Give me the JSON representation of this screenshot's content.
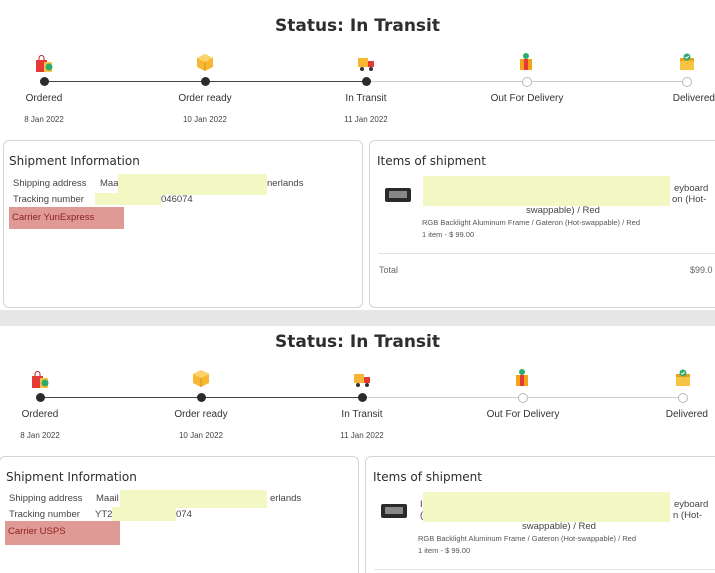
{
  "status_title": "Status: In Transit",
  "steps": [
    {
      "label": "Ordered",
      "date": "8 Jan 2022",
      "icon": "shopping-bag-icon",
      "done": true
    },
    {
      "label": "Order ready",
      "date": "10 Jan 2022",
      "icon": "package-icon",
      "done": true
    },
    {
      "label": "In Transit",
      "date": "11 Jan 2022",
      "icon": "truck-icon",
      "done": true
    },
    {
      "label": "Out For Delivery",
      "date": "",
      "icon": "delivery-box-icon",
      "done": false
    },
    {
      "label": "Delivered",
      "date": "",
      "icon": "delivered-box-icon",
      "done": false
    }
  ],
  "panels": [
    {
      "shipment": {
        "title": "Shipment Information",
        "address_label": "Shipping address",
        "address_start": "Maa",
        "address_end": "nerlands",
        "tracking_label": "Tracking number",
        "tracking_start": "",
        "tracking_end": "046074",
        "carrier": "Carrier  YunExpress"
      },
      "items": {
        "title": "Items of shipment",
        "product_end_1": "eyboard",
        "product_end_2": "on (Hot-",
        "product_line_3": "swappable) / Red",
        "variant": "RGB Backlight Aluminum Frame / Gateron (Hot-swappable) / Red",
        "qty": "1 item - $ 99.00",
        "total_label": "Total",
        "total_value": "$99.0"
      }
    },
    {
      "shipment": {
        "title": "Shipment Information",
        "address_label": "Shipping address",
        "address_start": "Maail",
        "address_end": "erlands",
        "tracking_label": "Tracking number",
        "tracking_start": "YT2",
        "tracking_end": "074",
        "carrier": "Carrier  USPS"
      },
      "items": {
        "title": "Items of shipment",
        "product_start_1": "I",
        "product_start_2": "(",
        "product_end_1": "eyboard",
        "product_end_2": "n (Hot-",
        "product_line_3": "swappable) / Red",
        "variant": "RGB Backlight Aluminum Frame / Gateron (Hot-swappable) / Red",
        "qty": "1 item - $ 99.00"
      }
    }
  ],
  "colors": {
    "carrier_bg": "#e09a96",
    "redaction": "#f3f7c4",
    "progress_done": "#2b2b2b"
  }
}
